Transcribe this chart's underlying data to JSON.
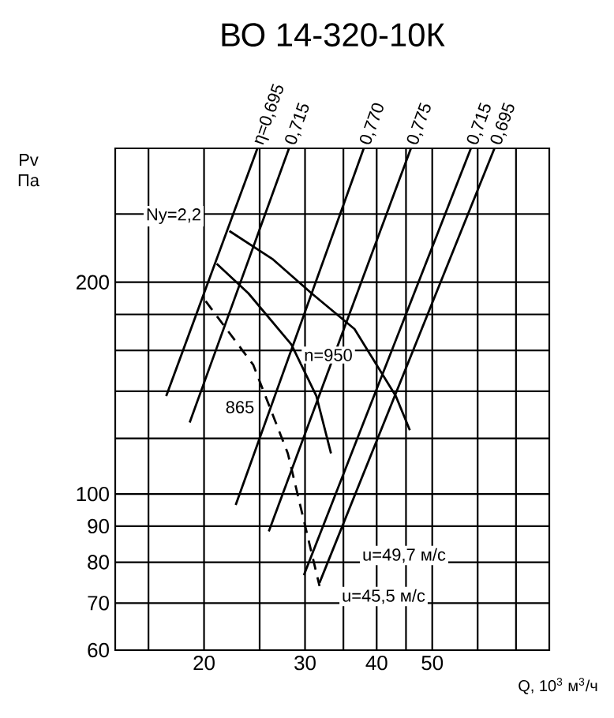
{
  "chart_data": {
    "type": "line",
    "title": "ВО 14-320-10К",
    "xlabel": "Q, 10$^{3}$ м$^{3}$/ч",
    "ylabel": "Pv Па",
    "log": "xy",
    "grid": true,
    "xlim": [
      14,
      80
    ],
    "ylim": [
      60,
      310
    ],
    "xticks": [
      {
        "value": 16,
        "label": null
      },
      20,
      {
        "value": 25,
        "label": null
      },
      30,
      {
        "value": 35,
        "label": null
      },
      40,
      {
        "value": 45,
        "label": null
      },
      50,
      {
        "value": 60,
        "label": null
      },
      {
        "value": 70,
        "label": null
      }
    ],
    "yticks": [
      60,
      70,
      80,
      90,
      100,
      {
        "value": 120,
        "label": null
      },
      {
        "value": 140,
        "label": null
      },
      {
        "value": 160,
        "label": null
      },
      {
        "value": 180,
        "label": null
      },
      200,
      {
        "value": 250,
        "label": null
      }
    ],
    "series": [
      {
        "name": "η=0,695",
        "color": "#000000",
        "x": [
          17.18,
          24.78
        ],
        "values": [
          137.8,
          310
        ]
      },
      {
        "name": "0,715",
        "color": "#000000",
        "x": [
          18.88,
          28.13
        ],
        "values": [
          126.4,
          310
        ]
      },
      {
        "name": "0,770",
        "color": "#000000",
        "x": [
          22.71,
          37.98
        ],
        "values": [
          96.5,
          310
        ]
      },
      {
        "name": "0,775",
        "color": "#000000",
        "x": [
          25.94,
          45.9
        ],
        "values": [
          88.5,
          310
        ]
      },
      {
        "name": "0,715",
        "color": "#000000",
        "x": [
          29.86,
          58.4
        ],
        "values": [
          76.7,
          310
        ]
      },
      {
        "name": "0,695",
        "color": "#000000",
        "x": [
          31.8,
          64.2
        ],
        "values": [
          74.8,
          310
        ]
      },
      {
        "color": "#000000",
        "x": [
          22.14,
          26.3,
          30.8,
          36.6,
          43.2,
          45.7
        ],
        "values": [
          236.5,
          215.9,
          192.9,
          171.6,
          137.8,
          123.2
        ]
      },
      {
        "color": "#000000",
        "x": [
          21.04,
          23.9,
          28.4,
          31.4,
          33.3
        ],
        "values": [
          212.5,
          192.9,
          163.1,
          137.8,
          114.2
        ]
      },
      {
        "color": "#000000",
        "line_style": "dashed",
        "x": [
          20.13,
          24.37,
          28.0,
          31.8
        ],
        "values": [
          188,
          152.6,
          114.2,
          74.0
        ]
      }
    ],
    "annotations": [
      "Ny=2,2",
      "n=950",
      "865",
      "u=49,7 м/с",
      "u=45,5 м/с"
    ]
  }
}
